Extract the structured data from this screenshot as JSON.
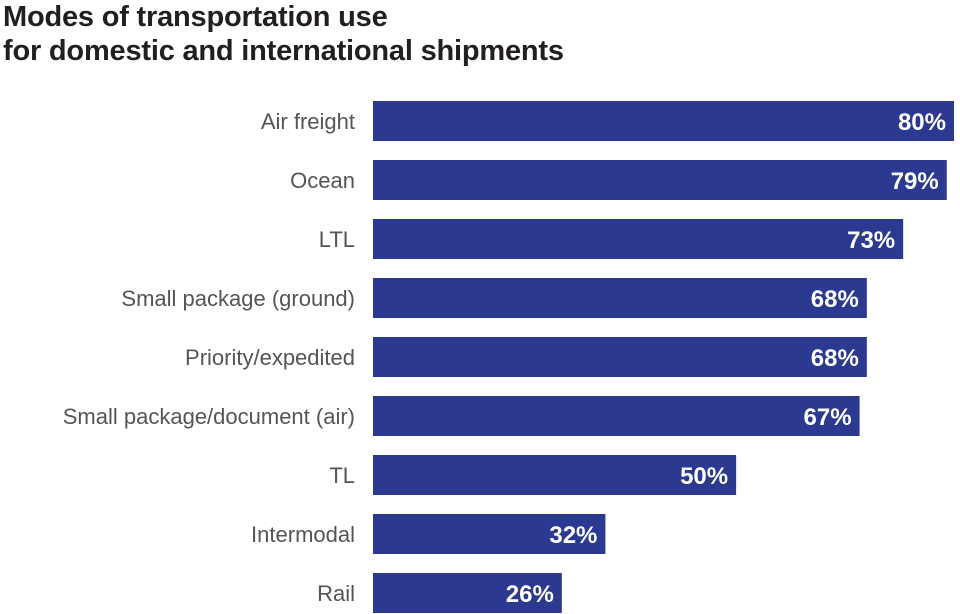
{
  "chart_data": {
    "type": "bar",
    "orientation": "horizontal",
    "title": [
      "Modes of transportation use",
      "for domestic and international shipments"
    ],
    "categories": [
      "Air freight",
      "Ocean",
      "LTL",
      "Small package (ground)",
      "Priority/expedited",
      "Small package/document (air)",
      "TL",
      "Intermodal",
      "Rail"
    ],
    "values": [
      80,
      79,
      73,
      68,
      68,
      67,
      50,
      32,
      26
    ],
    "value_labels": [
      "80%",
      "79%",
      "73%",
      "68%",
      "68%",
      "67%",
      "50%",
      "32%",
      "26%"
    ],
    "unit": "%",
    "xlim": [
      0,
      80
    ],
    "grid": false,
    "legend": "none",
    "bar_color": "#2b3990"
  }
}
